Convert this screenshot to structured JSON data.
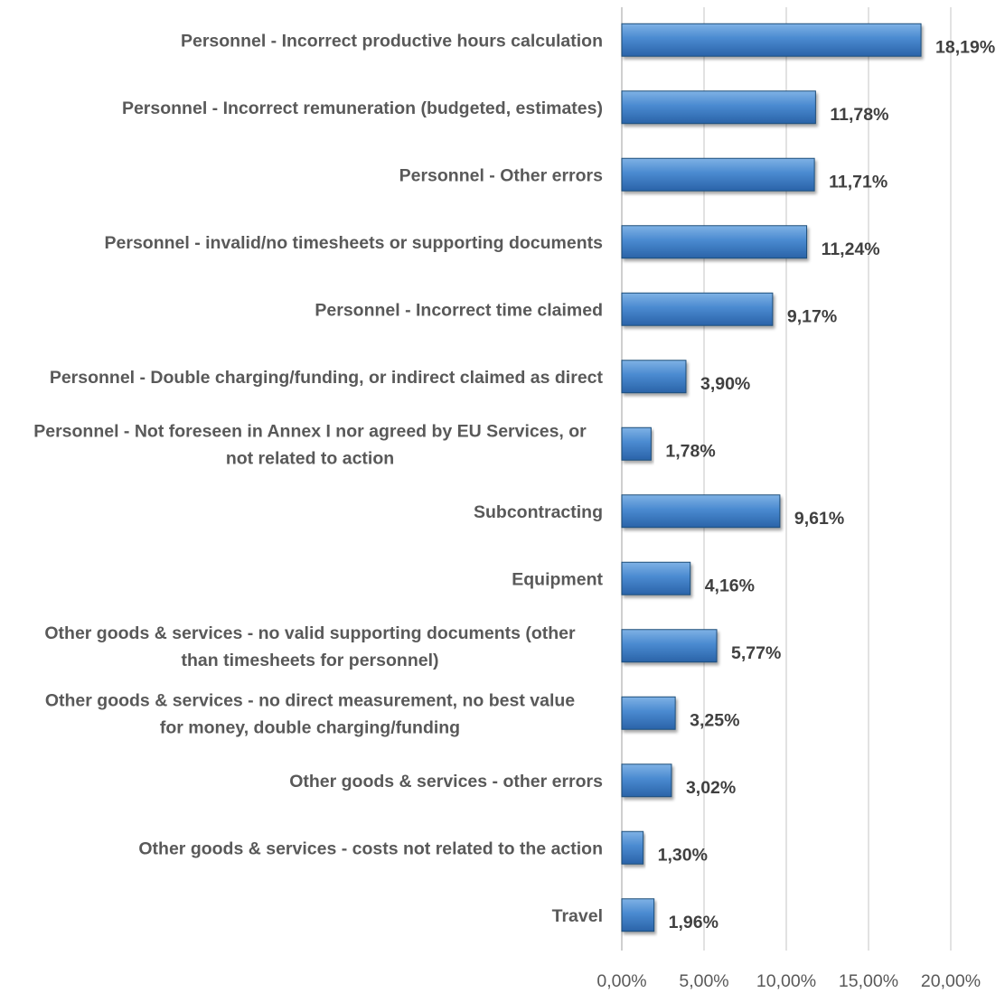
{
  "chart_data": {
    "type": "bar",
    "orientation": "horizontal",
    "categories": [
      [
        "Personnel - Incorrect productive hours calculation"
      ],
      [
        "Personnel - Incorrect remuneration (budgeted, estimates)"
      ],
      [
        "Personnel - Other errors"
      ],
      [
        "Personnel - invalid/no timesheets or supporting documents"
      ],
      [
        "Personnel - Incorrect time claimed"
      ],
      [
        "Personnel - Double charging/funding, or indirect claimed as direct"
      ],
      [
        "Personnel - Not foreseen in Annex I nor agreed by EU Services, or",
        "not related to action"
      ],
      [
        "Subcontracting"
      ],
      [
        "Equipment"
      ],
      [
        "Other goods & services - no valid supporting documents (other",
        "than timesheets for personnel)"
      ],
      [
        "Other goods & services - no direct measurement, no best value",
        "for money, double charging/funding"
      ],
      [
        "Other goods & services - other errors"
      ],
      [
        "Other goods & services - costs not related to the action"
      ],
      [
        "Travel"
      ]
    ],
    "values": [
      18.19,
      11.78,
      11.71,
      11.24,
      9.17,
      3.9,
      1.78,
      9.61,
      4.16,
      5.77,
      3.25,
      3.02,
      1.3,
      1.96
    ],
    "value_labels": [
      "18,19%",
      "11,78%",
      "11,71%",
      "11,24%",
      "9,17%",
      "3,90%",
      "1,78%",
      "9,61%",
      "4,16%",
      "5,77%",
      "3,25%",
      "3,02%",
      "1,30%",
      "1,96%"
    ],
    "xlim": [
      0,
      20
    ],
    "xticks": [
      0,
      5,
      10,
      15,
      20
    ],
    "xtick_labels": [
      "0,00%",
      "5,00%",
      "10,00%",
      "15,00%",
      "20,00%"
    ],
    "title": "",
    "xlabel": "",
    "ylabel": "",
    "grid": "vertical",
    "legend": "none",
    "colors": {
      "bar_fill_light": "#5b9bd5",
      "bar_fill_dark": "#2e6db4",
      "bar_stroke": "#1f4e79"
    }
  }
}
